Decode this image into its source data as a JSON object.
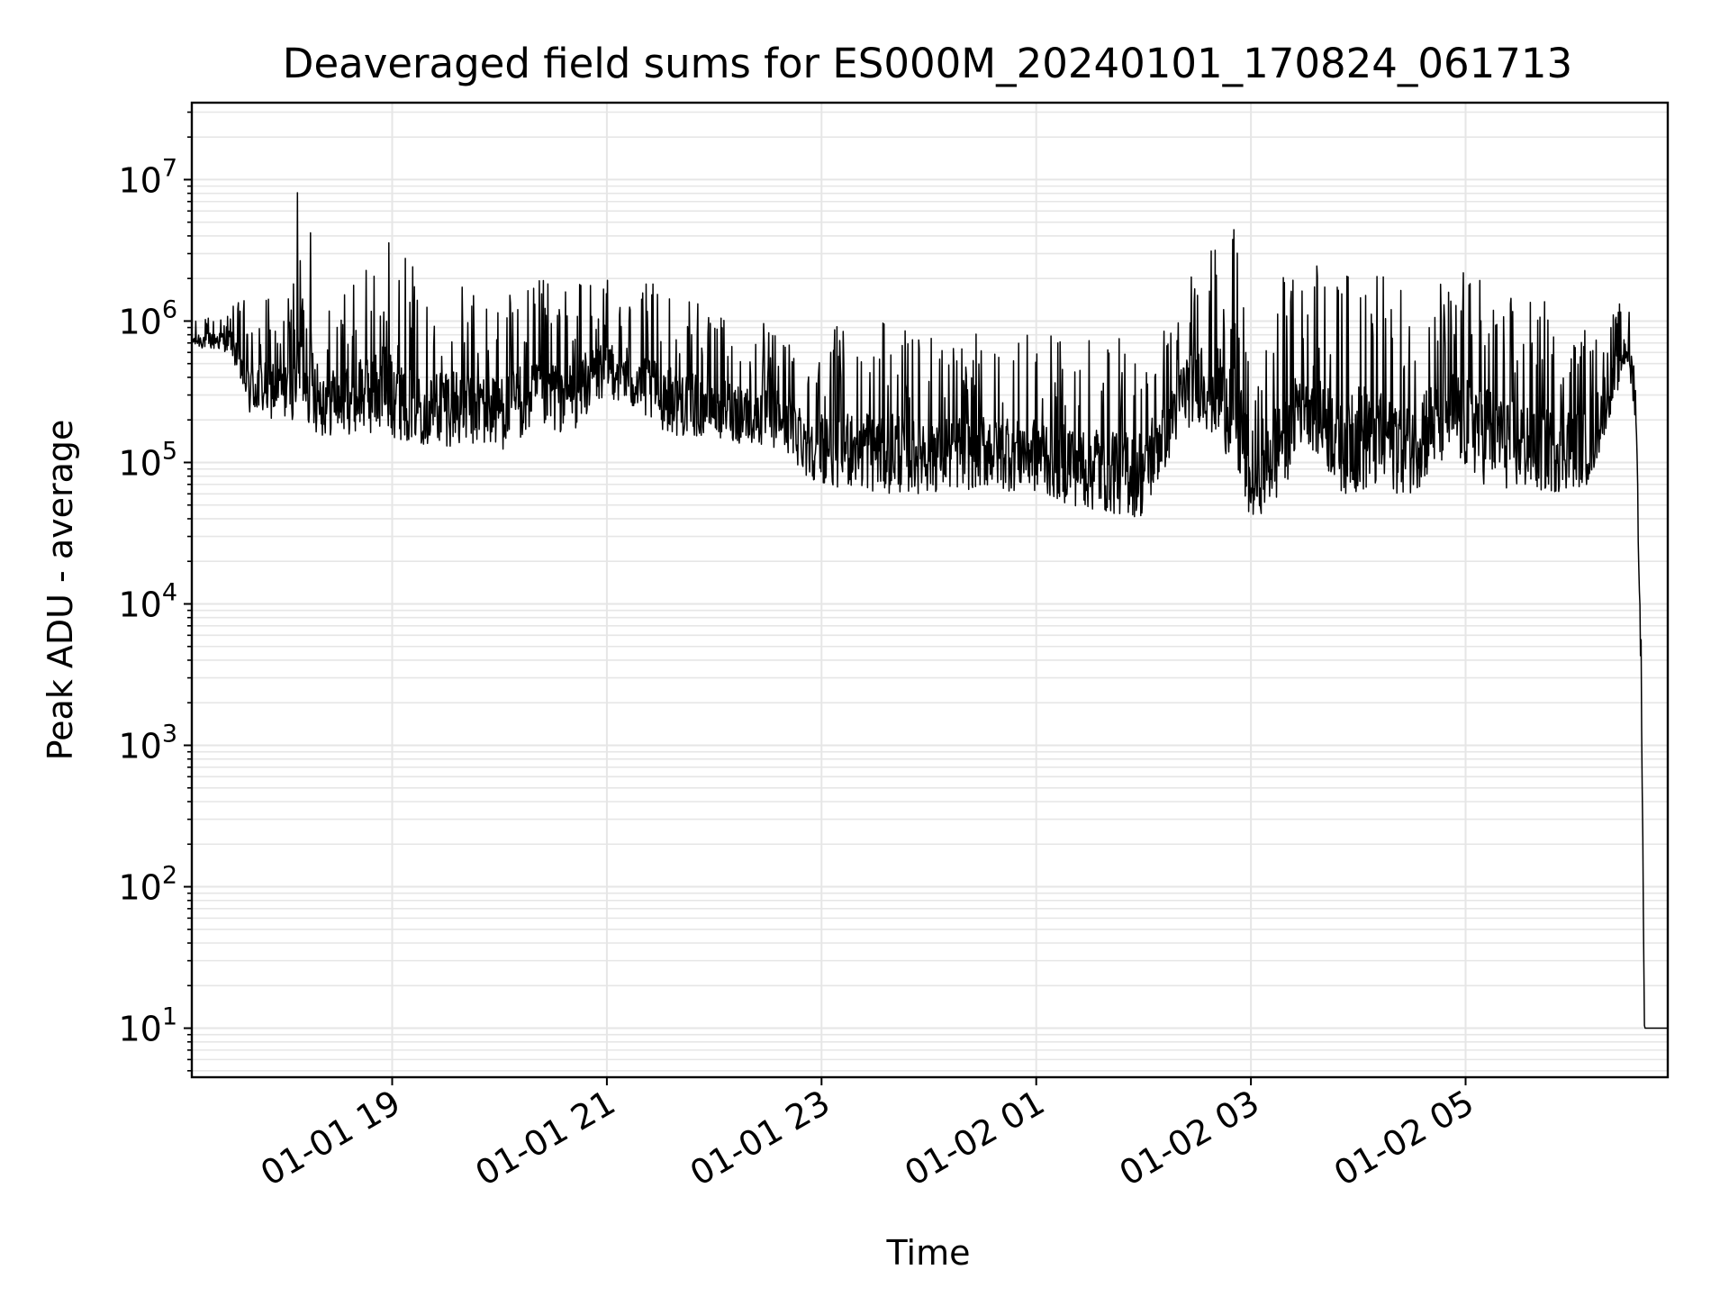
{
  "chart_data": {
    "type": "line",
    "title": "Deaveraged field sums for ES000M_20240101_170824_061713",
    "xlabel": "Time",
    "ylabel": "Peak ADU - average",
    "yscale": "log",
    "ylim": [
      4.5,
      35000000
    ],
    "xlim": [
      "2024-01-01 17:08",
      "2024-01-02 06:53"
    ],
    "grid": "major and minor",
    "line_color": "#000000",
    "grid_color": "#e6e6e6",
    "x_ticks": [
      {
        "time": "2024-01-01 19:00",
        "label": "01-01 19"
      },
      {
        "time": "2024-01-01 21:00",
        "label": "01-01 21"
      },
      {
        "time": "2024-01-01 23:00",
        "label": "01-01 23"
      },
      {
        "time": "2024-01-02 01:00",
        "label": "01-02 01"
      },
      {
        "time": "2024-01-02 03:00",
        "label": "01-02 03"
      },
      {
        "time": "2024-01-02 05:00",
        "label": "01-02 05"
      }
    ],
    "y_ticks": [
      {
        "value": 10,
        "base": "10",
        "exp": "1"
      },
      {
        "value": 100,
        "base": "10",
        "exp": "2"
      },
      {
        "value": 1000,
        "base": "10",
        "exp": "3"
      },
      {
        "value": 10000,
        "base": "10",
        "exp": "4"
      },
      {
        "value": 100000,
        "base": "10",
        "exp": "5"
      },
      {
        "value": 1000000,
        "base": "10",
        "exp": "6"
      },
      {
        "value": 10000000,
        "base": "10",
        "exp": "7"
      }
    ],
    "series": [
      {
        "style": "noisy envelope (dense jagged trace between low and high bounds)",
        "x": [
          "2024-01-01 17:08",
          "2024-01-01 17:30",
          "2024-01-01 17:40",
          "2024-01-01 18:00",
          "2024-01-01 18:10",
          "2024-01-01 18:20",
          "2024-01-01 18:40",
          "2024-01-01 19:00",
          "2024-01-01 19:20",
          "2024-01-01 19:40",
          "2024-01-01 20:00",
          "2024-01-01 20:20",
          "2024-01-01 20:40",
          "2024-01-01 21:00",
          "2024-01-01 21:20",
          "2024-01-01 21:40",
          "2024-01-01 22:00",
          "2024-01-01 22:20",
          "2024-01-01 22:40",
          "2024-01-01 22:50",
          "2024-01-01 23:00",
          "2024-01-01 23:30",
          "2024-01-02 00:00",
          "2024-01-02 00:30",
          "2024-01-02 01:00",
          "2024-01-02 01:30",
          "2024-01-02 02:00",
          "2024-01-02 02:20",
          "2024-01-02 02:30",
          "2024-01-02 02:50",
          "2024-01-02 02:55",
          "2024-01-02 03:00",
          "2024-01-02 03:15",
          "2024-01-02 03:30",
          "2024-01-02 03:50",
          "2024-01-02 04:10",
          "2024-01-02 04:30",
          "2024-01-02 04:50",
          "2024-01-02 05:10",
          "2024-01-02 05:30",
          "2024-01-02 05:50",
          "2024-01-02 06:10",
          "2024-01-02 06:20",
          "2024-01-02 06:30",
          "2024-01-02 06:35",
          "2024-01-02 06:38",
          "2024-01-02 06:40",
          "2024-01-02 06:43",
          "2024-01-02 06:53"
        ],
        "low": [
          650000,
          600000,
          200000,
          200000,
          200000,
          150000,
          160000,
          150000,
          130000,
          130000,
          120000,
          160000,
          160000,
          300000,
          200000,
          150000,
          150000,
          130000,
          120000,
          80000,
          70000,
          60000,
          60000,
          65000,
          60000,
          45000,
          40000,
          150000,
          200000,
          100000,
          50000,
          40000,
          50000,
          150000,
          60000,
          60000,
          60000,
          100000,
          70000,
          60000,
          60000,
          70000,
          200000,
          500000,
          200000,
          3000,
          10,
          10,
          10
        ],
        "high": [
          1000000,
          1300000,
          1600000,
          1500000,
          17000000,
          1500000,
          2000000,
          5000000,
          1700000,
          1800000,
          1800000,
          2000000,
          2000000,
          2000000,
          2000000,
          1500000,
          1200000,
          1000000,
          1000000,
          900000,
          900000,
          1000000,
          900000,
          800000,
          800000,
          800000,
          800000,
          1500000,
          3000000,
          4500000,
          4500000,
          200000,
          2500000,
          2500000,
          2500000,
          2500000,
          1500000,
          2500000,
          2500000,
          1500000,
          1500000,
          1000000,
          1200000,
          1500000,
          1000000,
          10000,
          10,
          10,
          10
        ]
      }
    ]
  }
}
